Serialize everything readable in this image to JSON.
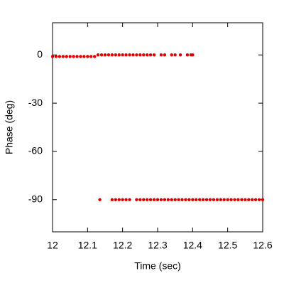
{
  "chart_data": {
    "type": "scatter",
    "xlabel": "Time (sec)",
    "ylabel": "Phase (deg)",
    "color": "#e00000",
    "xlim": [
      12,
      12.6
    ],
    "xticks": [
      12,
      12.1,
      12.2,
      12.3,
      12.4,
      12.5,
      12.6
    ],
    "ylim": [
      -110,
      20
    ],
    "yticks": [
      0,
      -30,
      -60,
      -90
    ],
    "grid": false,
    "x": [
      12.0,
      12.01,
      12.02,
      12.03,
      12.04,
      12.05,
      12.06,
      12.07,
      12.08,
      12.09,
      12.1,
      12.11,
      12.12,
      12.13,
      12.14,
      12.15,
      12.16,
      12.17,
      12.18,
      12.19,
      12.2,
      12.21,
      12.22,
      12.23,
      12.24,
      12.25,
      12.26,
      12.27,
      12.28,
      12.29,
      12.31,
      12.32,
      12.34,
      12.35,
      12.365,
      12.385,
      12.395,
      12.4,
      12.135,
      12.17,
      12.18,
      12.19,
      12.2,
      12.21,
      12.22,
      12.24,
      12.25,
      12.26,
      12.27,
      12.28,
      12.29,
      12.3,
      12.31,
      12.32,
      12.33,
      12.34,
      12.35,
      12.36,
      12.37,
      12.38,
      12.39,
      12.4,
      12.41,
      12.42,
      12.43,
      12.44,
      12.45,
      12.46,
      12.47,
      12.48,
      12.49,
      12.5,
      12.51,
      12.52,
      12.53,
      12.54,
      12.55,
      12.56,
      12.57,
      12.58,
      12.59,
      12.6
    ],
    "values": [
      -1,
      -1,
      -1,
      -1,
      -1,
      -1,
      -1,
      -1,
      -1,
      -1,
      -1,
      -1,
      -1,
      0,
      0,
      0,
      0,
      0,
      0,
      0,
      0,
      0,
      0,
      0,
      0,
      0,
      0,
      0,
      0,
      0,
      0,
      0,
      0,
      0,
      0,
      0,
      0,
      0,
      -90,
      -90,
      -90,
      -90,
      -90,
      -90,
      -90,
      -90,
      -90,
      -90,
      -90,
      -90,
      -90,
      -90,
      -90,
      -90,
      -90,
      -90,
      -90,
      -90,
      -90,
      -90,
      -90,
      -90,
      -90,
      -90,
      -90,
      -90,
      -90,
      -90,
      -90,
      -90,
      -90,
      -90,
      -90,
      -90,
      -90,
      -90,
      -90,
      -90,
      -90,
      -90,
      -90,
      -90
    ]
  }
}
